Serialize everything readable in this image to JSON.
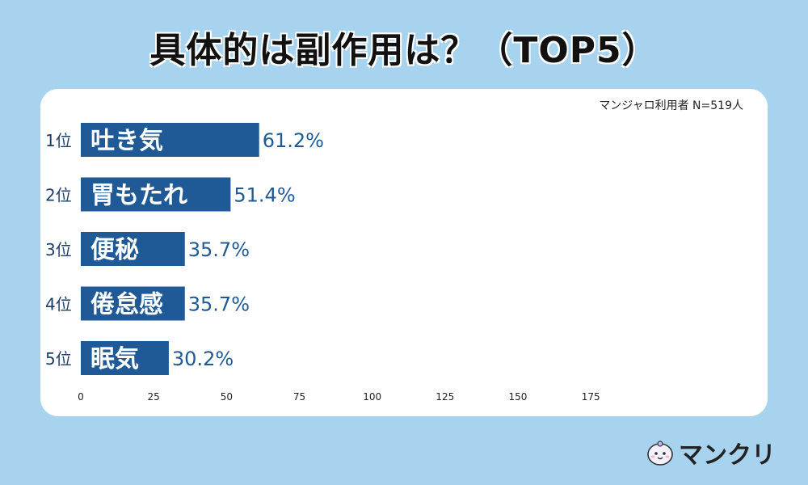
{
  "title": "具体的は副作用は？（TOP5）",
  "note": "マンジャロ利用者 N=519人",
  "brand": "マンクリ",
  "colors": {
    "background": "#a8d3ef",
    "bar": "#1f5a96",
    "value_text": "#1f5a96",
    "card": "#ffffff"
  },
  "chart_data": {
    "type": "bar",
    "orientation": "horizontal",
    "categories": [
      "吐き気",
      "胃もたれ",
      "便秘",
      "倦怠感",
      "眠気"
    ],
    "ranks": [
      "1位",
      "2位",
      "3位",
      "4位",
      "5位"
    ],
    "values": [
      61.2,
      51.4,
      35.7,
      35.7,
      30.2
    ],
    "value_labels": [
      "61.2%",
      "51.4%",
      "35.7%",
      "35.7%",
      "30.2%"
    ],
    "x_ticks": [
      0,
      25,
      50,
      75,
      100,
      125,
      150,
      175
    ],
    "xlim": [
      0,
      211
    ],
    "grid": false,
    "legend": "none"
  }
}
